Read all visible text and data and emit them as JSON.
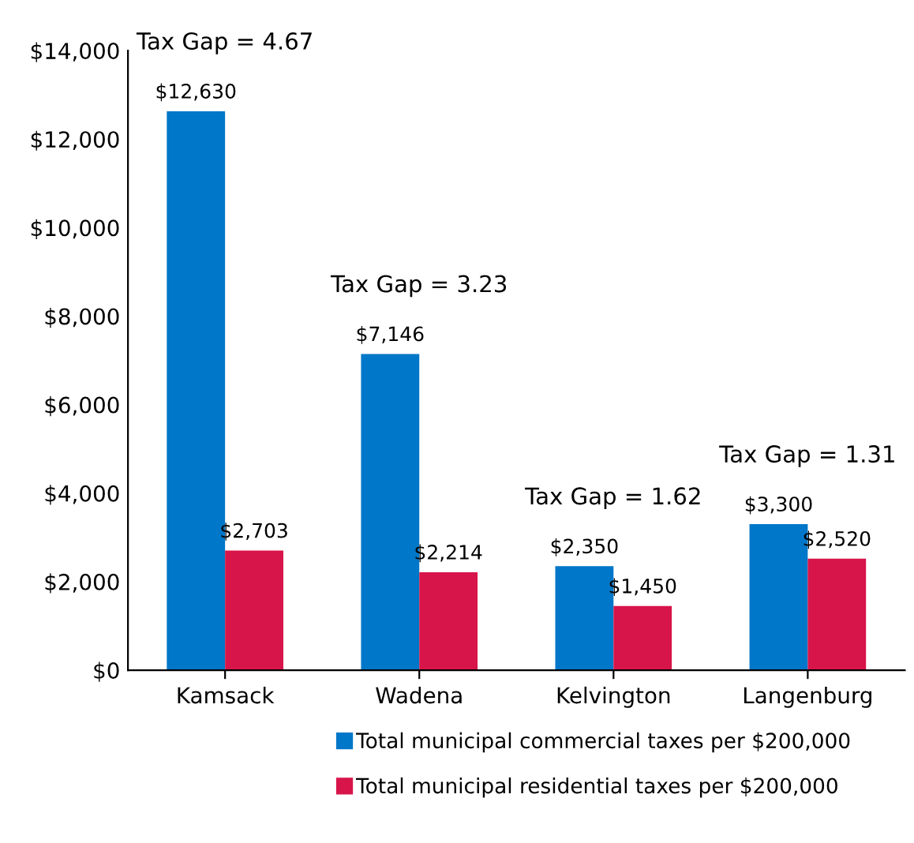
{
  "chart_data": {
    "type": "bar",
    "categories": [
      "Kamsack",
      "Wadena",
      "Kelvington",
      "Langenburg"
    ],
    "series": [
      {
        "name": "Total municipal commercial taxes per $200,000",
        "color": "#0077c8",
        "values": [
          12630,
          7146,
          2350,
          3300
        ],
        "value_labels": [
          "$12,630",
          "$7,146",
          "$2,350",
          "$3,300"
        ]
      },
      {
        "name": "Total municipal residential taxes per $200,000",
        "color": "#d7154a",
        "values": [
          2703,
          2214,
          1450,
          2520
        ],
        "value_labels": [
          "$2,703",
          "$2,214",
          "$1,450",
          "$2,520"
        ]
      }
    ],
    "ylim": [
      0,
      14000
    ],
    "yticks": [
      {
        "value": 0,
        "label": "$0"
      },
      {
        "value": 2000,
        "label": "$2,000"
      },
      {
        "value": 4000,
        "label": "$4,000"
      },
      {
        "value": 6000,
        "label": "$6,000"
      },
      {
        "value": 8000,
        "label": "$8,000"
      },
      {
        "value": 10000,
        "label": "$10,000"
      },
      {
        "value": 12000,
        "label": "$12,000"
      },
      {
        "value": 14000,
        "label": "$14,000"
      }
    ],
    "annotations": [
      "Tax Gap = 4.67",
      "Tax Gap = 3.23",
      "Tax Gap = 1.62",
      "Tax Gap = 1.31"
    ],
    "legend": "bottom",
    "grid": false
  }
}
